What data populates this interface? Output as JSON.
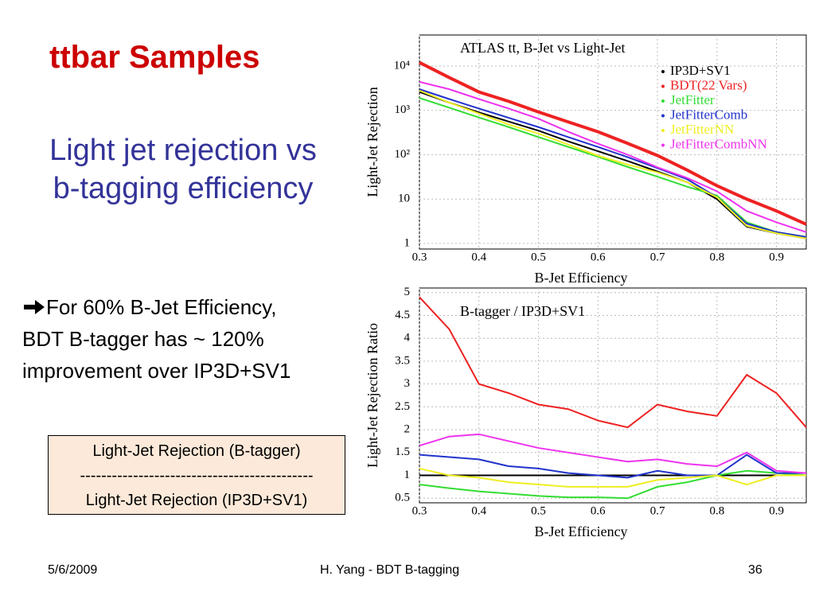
{
  "slide": {
    "title": "ttbar Samples",
    "subtitle": [
      "Light jet rejection vs",
      "b-tagging efficiency"
    ],
    "bullet": [
      "For 60% B-Jet Efficiency,",
      "BDT B-tagger has ~ 120%",
      "improvement over IP3D+SV1"
    ],
    "box": [
      "Light-Jet Rejection (B-tagger)",
      "--------------------------------------------",
      "Light-Jet Rejection (IP3D+SV1)"
    ],
    "footer": {
      "date": "5/6/2009",
      "center": "H. Yang - BDT B-tagging",
      "page": "36"
    }
  },
  "chart_data": [
    {
      "type": "line",
      "title": "ATLAS tt, B-Jet vs Light-Jet",
      "x_label": "B-Jet Efficiency",
      "y_label": "Light-Jet Rejection",
      "log_y": true,
      "grid": true,
      "legend": "upper right",
      "xlim": [
        0.3,
        0.95
      ],
      "ylim": [
        0.75,
        50000
      ],
      "xticks": [
        0.3,
        0.4,
        0.5,
        0.6,
        0.7,
        0.8,
        0.9
      ],
      "yticks": [
        1,
        10,
        {
          "value": 100,
          "label": "10²"
        },
        {
          "value": 1000,
          "label": "10³"
        },
        {
          "value": 10000,
          "label": "10⁴"
        }
      ],
      "x": [
        0.3,
        0.35,
        0.4,
        0.45,
        0.5,
        0.55,
        0.6,
        0.65,
        0.7,
        0.75,
        0.8,
        0.85,
        0.9,
        0.95
      ],
      "series": [
        {
          "name": "IP3D+SV1",
          "color": "#000000",
          "values": [
            2600,
            1500,
            900,
            560,
            350,
            200,
            120,
            72,
            42,
            24,
            10,
            2.4,
            1.7,
            1.3
          ]
        },
        {
          "name": "BDT(22 Vars)",
          "color": "#ee2222",
          "values": [
            12000,
            5500,
            2600,
            1600,
            920,
            550,
            330,
            180,
            96,
            45,
            20,
            10,
            5.4,
            2.7
          ]
        },
        {
          "name": "JetFitter",
          "color": "#33dd33",
          "values": [
            1900,
            1150,
            690,
            420,
            250,
            150,
            90,
            53,
            32,
            19,
            12,
            3,
            1.8,
            1.4
          ]
        },
        {
          "name": "JetFitterComb",
          "color": "#2233cc",
          "values": [
            3000,
            1800,
            1100,
            680,
            420,
            250,
            150,
            88,
            50,
            28,
            11,
            2.8,
            1.8,
            1.4
          ]
        },
        {
          "name": "JetFitterNN",
          "color": "#eeee22",
          "values": [
            2800,
            1500,
            850,
            480,
            300,
            170,
            95,
            60,
            40,
            24,
            11,
            2.5,
            1.7,
            1.3
          ]
        },
        {
          "name": "JetFitterCombNN",
          "color": "#ee33ee",
          "values": [
            4400,
            3000,
            1800,
            1100,
            650,
            330,
            178,
            100,
            52,
            30,
            15,
            5.4,
            3,
            1.8
          ]
        }
      ]
    },
    {
      "type": "line",
      "title": "B-tagger / IP3D+SV1",
      "x_label": "B-Jet Efficiency",
      "y_label": "Light-Jet Rejection Ratio",
      "log_y": false,
      "grid": true,
      "xlim": [
        0.3,
        0.95
      ],
      "ylim": [
        0.4,
        5.1
      ],
      "xticks": [
        0.3,
        0.4,
        0.5,
        0.6,
        0.7,
        0.8,
        0.9
      ],
      "yticks": [
        0.5,
        1,
        1.5,
        2,
        2.5,
        3,
        3.5,
        4,
        4.5,
        5
      ],
      "x": [
        0.3,
        0.35,
        0.4,
        0.45,
        0.5,
        0.55,
        0.6,
        0.65,
        0.7,
        0.75,
        0.8,
        0.85,
        0.9,
        0.95
      ],
      "series": [
        {
          "color": "#000000",
          "values": [
            1,
            1,
            1,
            1,
            1,
            1,
            1,
            1,
            1,
            1,
            1,
            1,
            1,
            1
          ]
        },
        {
          "color": "#ee2222",
          "values": [
            4.9,
            4.2,
            3.0,
            2.8,
            2.55,
            2.45,
            2.2,
            2.05,
            2.55,
            2.4,
            2.3,
            3.2,
            2.8,
            2.05
          ]
        },
        {
          "color": "#33dd33",
          "values": [
            0.8,
            0.72,
            0.65,
            0.6,
            0.55,
            0.52,
            0.52,
            0.5,
            0.75,
            0.85,
            1.0,
            1.1,
            1.05,
            1.0
          ]
        },
        {
          "color": "#2233cc",
          "values": [
            1.45,
            1.4,
            1.35,
            1.2,
            1.15,
            1.05,
            1.0,
            0.95,
            1.1,
            1.0,
            1.0,
            1.45,
            1.05,
            1.05
          ]
        },
        {
          "color": "#eeee22",
          "values": [
            1.15,
            1.0,
            0.95,
            0.85,
            0.8,
            0.75,
            0.75,
            0.75,
            0.9,
            0.95,
            1.0,
            0.8,
            1.0,
            1.0
          ]
        },
        {
          "color": "#ee33ee",
          "values": [
            1.65,
            1.85,
            1.9,
            1.75,
            1.6,
            1.5,
            1.4,
            1.3,
            1.35,
            1.25,
            1.2,
            1.5,
            1.1,
            1.05
          ]
        }
      ]
    }
  ]
}
